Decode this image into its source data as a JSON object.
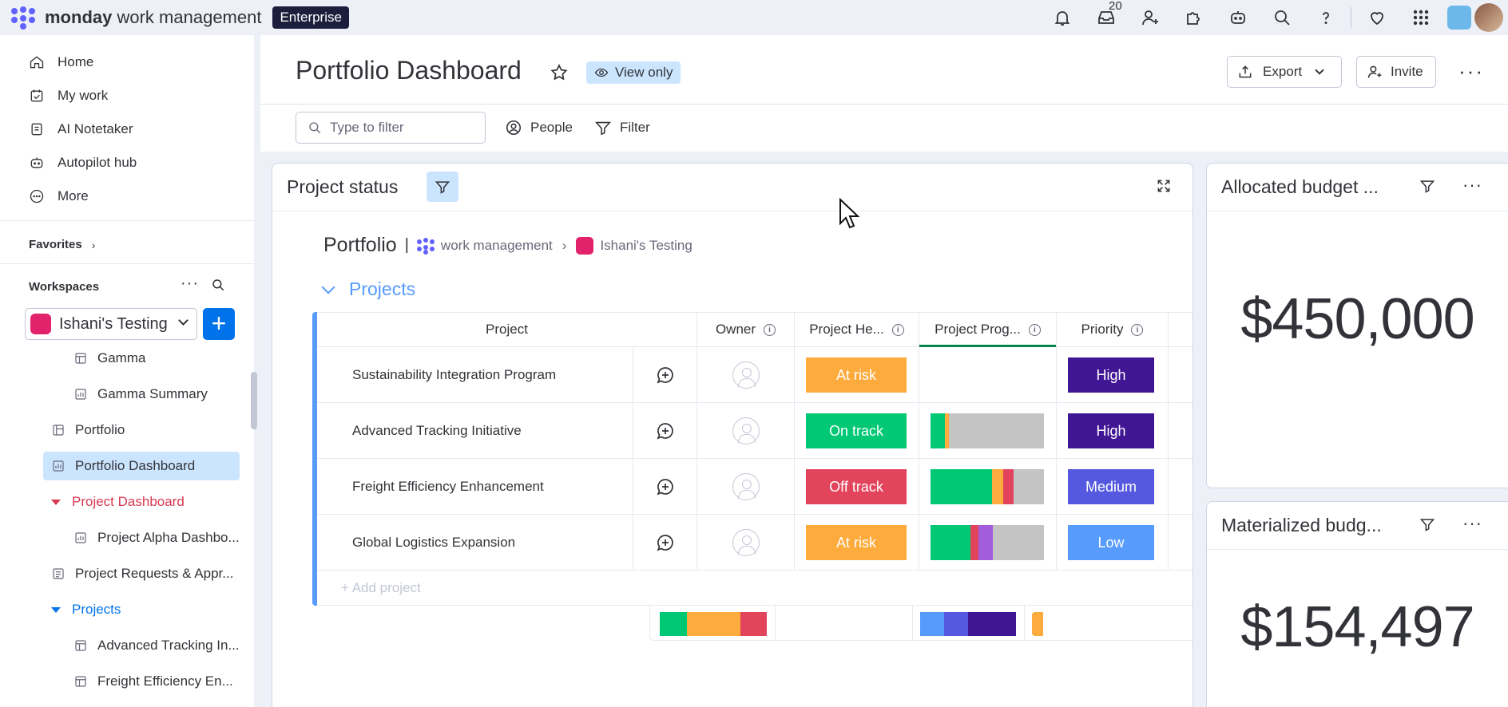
{
  "topbar": {
    "brand_bold": "monday",
    "brand_light": "work management",
    "plan": "Enterprise",
    "inbox_count": "20",
    "colors": {
      "accent": "#0073ea",
      "badge_bg": "#1c1f3b"
    },
    "icons": [
      "bell-icon",
      "inbox-icon",
      "invite-members-icon",
      "apps-icon",
      "ai-assistant-icon",
      "search-icon",
      "help-icon",
      "heart-icon",
      "grid-menu-icon"
    ]
  },
  "sidebar": {
    "nav": [
      {
        "label": "Home",
        "icon": "home-icon"
      },
      {
        "label": "My work",
        "icon": "my-work-icon"
      },
      {
        "label": "AI Notetaker",
        "icon": "notetaker-icon"
      },
      {
        "label": "Autopilot hub",
        "icon": "autopilot-icon"
      },
      {
        "label": "More",
        "icon": "more-circle-icon"
      }
    ],
    "favorites_label": "Favorites",
    "workspaces_label": "Workspaces",
    "workspace_name": "Ishani's Testing",
    "tree": [
      {
        "label": "Gamma",
        "icon": "board-icon"
      },
      {
        "label": "Gamma Summary",
        "icon": "dashboard-icon"
      },
      {
        "label": "Portfolio",
        "icon": "portfolio-icon"
      },
      {
        "label": "Portfolio Dashboard",
        "icon": "dashboard-icon"
      },
      {
        "label": "Project Dashboard",
        "icon": "folder-caret-icon"
      },
      {
        "label": "Project Alpha Dashbo...",
        "icon": "dashboard-icon"
      },
      {
        "label": "Project Requests & Appr...",
        "icon": "form-icon"
      },
      {
        "label": "Projects",
        "icon": "folder-caret-icon"
      },
      {
        "label": "Advanced Tracking In...",
        "icon": "board-icon"
      },
      {
        "label": "Freight Efficiency En...",
        "icon": "board-icon"
      }
    ]
  },
  "header": {
    "title": "Portfolio Dashboard",
    "view_only": "View only",
    "export_label": "Export",
    "invite_label": "Invite",
    "filter_placeholder": "Type to filter",
    "people_label": "People",
    "filter_label": "Filter"
  },
  "project_status_widget": {
    "title": "Project status",
    "breadcrumb": {
      "title": "Portfolio",
      "product": "work management",
      "workspace": "Ishani's Testing"
    },
    "group_title": "Projects",
    "columns": [
      "Project",
      "Owner",
      "Project He...",
      "Project Prog...",
      "Priority"
    ],
    "rows": [
      {
        "project": "Sustainability Integration Program",
        "health": "At risk",
        "health_color": "#fdab3d",
        "progress": [],
        "priority": "High",
        "priority_color": "#401694"
      },
      {
        "project": "Advanced Tracking Initiative",
        "health": "On track",
        "health_color": "#00c875",
        "progress": [
          {
            "color": "#00c875",
            "fraction": 0.13
          },
          {
            "color": "#fdab3d",
            "fraction": 0.03
          },
          {
            "color": "#c4c4c4",
            "fraction": 0.84
          }
        ],
        "priority": "High",
        "priority_color": "#401694"
      },
      {
        "project": "Freight Efficiency Enhancement",
        "health": "Off track",
        "health_color": "#e2445c",
        "progress": [
          {
            "color": "#00c875",
            "fraction": 0.54
          },
          {
            "color": "#fdab3d",
            "fraction": 0.1
          },
          {
            "color": "#e2445c",
            "fraction": 0.09
          },
          {
            "color": "#c4c4c4",
            "fraction": 0.27
          }
        ],
        "priority": "Medium",
        "priority_color": "#5559df"
      },
      {
        "project": "Global Logistics Expansion",
        "health": "At risk",
        "health_color": "#fdab3d",
        "progress": [
          {
            "color": "#00c875",
            "fraction": 0.35
          },
          {
            "color": "#e2445c",
            "fraction": 0.07
          },
          {
            "color": "#a25ddc",
            "fraction": 0.13
          },
          {
            "color": "#c4c4c4",
            "fraction": 0.45
          }
        ],
        "priority": "Low",
        "priority_color": "#579bfc"
      }
    ],
    "add_project": "+ Add project",
    "summary": {
      "health": [
        {
          "color": "#00c875",
          "fraction": 0.25
        },
        {
          "color": "#fdab3d",
          "fraction": 0.5
        },
        {
          "color": "#e2445c",
          "fraction": 0.25
        }
      ],
      "progress_dash": "-",
      "priority": [
        {
          "color": "#579bfc",
          "fraction": 0.25
        },
        {
          "color": "#5559df",
          "fraction": 0.25
        },
        {
          "color": "#401694",
          "fraction": 0.5
        }
      ]
    }
  },
  "allocated_widget": {
    "title": "Allocated budget ...",
    "value": "$450,000"
  },
  "materialized_widget": {
    "title": "Materialized budg...",
    "value": "$154,497"
  }
}
